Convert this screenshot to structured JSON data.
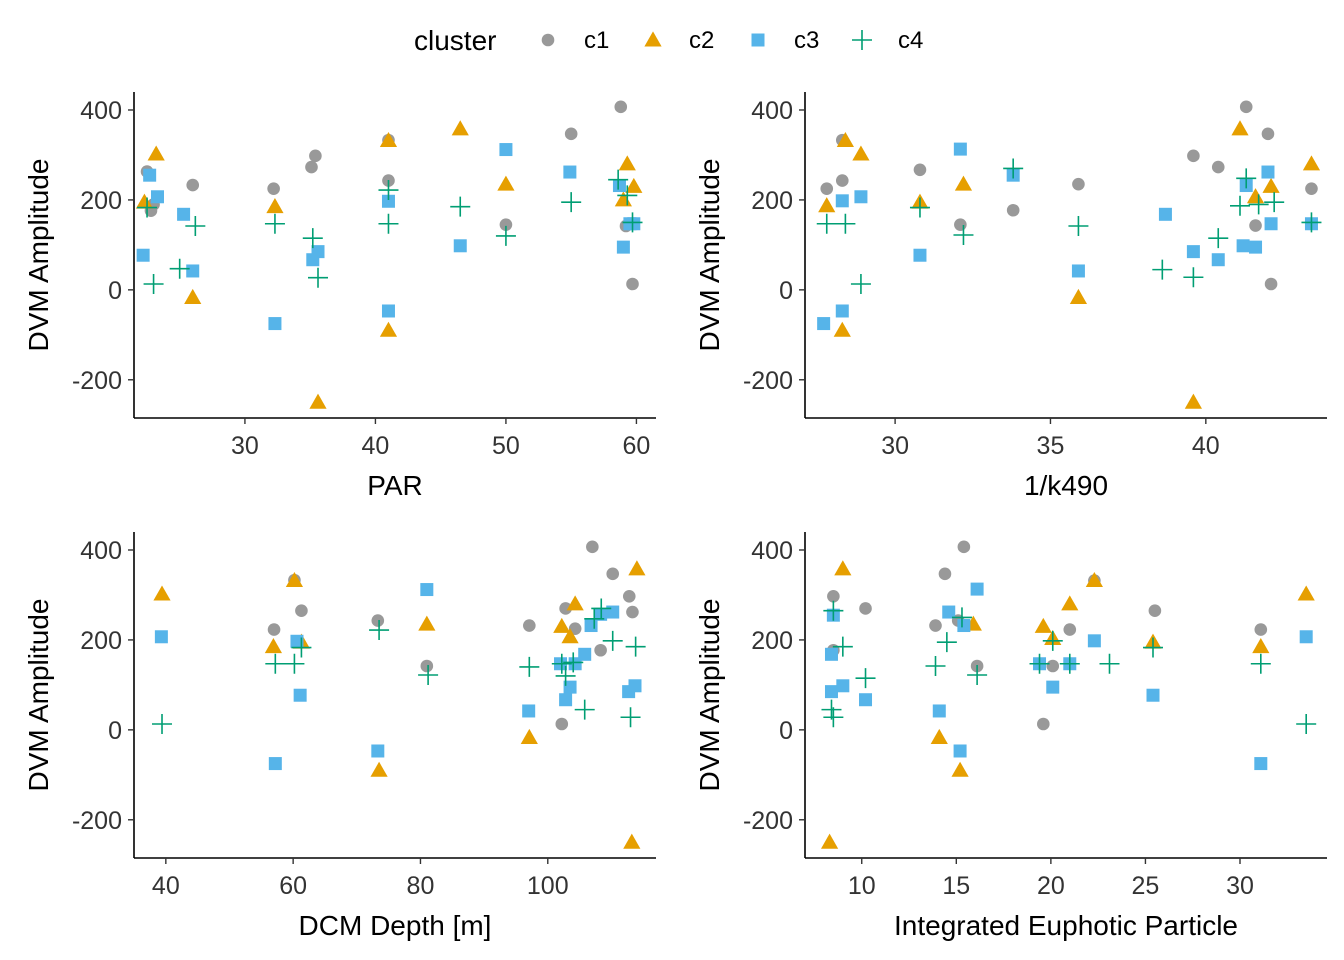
{
  "legend": {
    "title": "cluster",
    "placement": "top",
    "items": [
      {
        "label": "c1",
        "shape": "circle",
        "color": "#999999"
      },
      {
        "label": "c2",
        "shape": "triangle",
        "color": "#E69F00"
      },
      {
        "label": "c3",
        "shape": "square",
        "color": "#56B4E9"
      },
      {
        "label": "c4",
        "shape": "plus",
        "color": "#009E73"
      }
    ]
  },
  "chart_data": [
    {
      "type": "scatter",
      "xlabel": "PAR",
      "ylabel": "DVM Amplitude",
      "xlim": [
        21.5,
        61.5
      ],
      "ylim": [
        -285,
        440
      ],
      "xticks": [
        30,
        40,
        50,
        60
      ],
      "yticks": [
        -200,
        0,
        200,
        400
      ],
      "series": [
        {
          "name": "c1",
          "points": [
            [
              22.5,
              263
            ],
            [
              22.8,
              176
            ],
            [
              23,
              190
            ],
            [
              26,
              233
            ],
            [
              32.2,
              225
            ],
            [
              35.1,
              273
            ],
            [
              35.4,
              298
            ],
            [
              41,
              333
            ],
            [
              41,
              243
            ],
            [
              50,
              145
            ],
            [
              55,
              347
            ],
            [
              58.8,
              407
            ],
            [
              59.2,
              142
            ],
            [
              59.7,
              13
            ]
          ]
        },
        {
          "name": "c2",
          "points": [
            [
              22.3,
              195
            ],
            [
              23.2,
              302
            ],
            [
              26,
              -17
            ],
            [
              32.3,
              185
            ],
            [
              35.6,
              -250
            ],
            [
              41,
              332
            ],
            [
              41,
              -90
            ],
            [
              46.5,
              358
            ],
            [
              50,
              235
            ],
            [
              59,
              200
            ],
            [
              59.3,
              280
            ],
            [
              59.8,
              230
            ]
          ]
        },
        {
          "name": "c3",
          "points": [
            [
              22.2,
              77
            ],
            [
              22.7,
              255
            ],
            [
              23.3,
              207
            ],
            [
              25.3,
              168
            ],
            [
              26,
              42
            ],
            [
              32.3,
              -75
            ],
            [
              35.2,
              67
            ],
            [
              35.6,
              85
            ],
            [
              41,
              197
            ],
            [
              41,
              -47
            ],
            [
              46.5,
              98
            ],
            [
              50,
              312
            ],
            [
              54.9,
              262
            ],
            [
              58.7,
              232
            ],
            [
              59,
              95
            ],
            [
              59.5,
              147
            ],
            [
              59.8,
              147
            ]
          ]
        },
        {
          "name": "c4",
          "points": [
            [
              22.5,
              183
            ],
            [
              23,
              13
            ],
            [
              25,
              47
            ],
            [
              26.2,
              142
            ],
            [
              32.3,
              147
            ],
            [
              35.2,
              115
            ],
            [
              35.6,
              27
            ],
            [
              41,
              222
            ],
            [
              41,
              147
            ],
            [
              46.5,
              185
            ],
            [
              50,
              120
            ],
            [
              55,
              195
            ],
            [
              58.6,
              245
            ],
            [
              59.3,
              210
            ],
            [
              59.7,
              150
            ]
          ]
        }
      ]
    },
    {
      "type": "scatter",
      "xlabel": "1/k490",
      "ylabel": "DVM Amplitude",
      "xlim": [
        27.1,
        43.9
      ],
      "ylim": [
        -285,
        440
      ],
      "xticks": [
        30,
        35,
        40
      ],
      "yticks": [
        -200,
        0,
        200,
        400
      ],
      "series": [
        {
          "name": "c1",
          "points": [
            [
              27.8,
              225
            ],
            [
              28.3,
              333
            ],
            [
              28.3,
              243
            ],
            [
              30.8,
              267
            ],
            [
              32.1,
              145
            ],
            [
              33.8,
              177
            ],
            [
              35.9,
              235
            ],
            [
              39.6,
              298
            ],
            [
              40.4,
              273
            ],
            [
              41.3,
              407
            ],
            [
              41.6,
              143
            ],
            [
              42,
              347
            ],
            [
              42.1,
              13
            ],
            [
              43.4,
              225
            ]
          ]
        },
        {
          "name": "c2",
          "points": [
            [
              27.8,
              187
            ],
            [
              28.3,
              -90
            ],
            [
              28.4,
              332
            ],
            [
              28.9,
              302
            ],
            [
              30.8,
              195
            ],
            [
              32.2,
              235
            ],
            [
              35.9,
              -17
            ],
            [
              39.6,
              -250
            ],
            [
              41.1,
              358
            ],
            [
              41.6,
              207
            ],
            [
              42.1,
              230
            ],
            [
              43.4,
              280
            ]
          ]
        },
        {
          "name": "c3",
          "points": [
            [
              27.7,
              -75
            ],
            [
              28.3,
              198
            ],
            [
              28.3,
              -47
            ],
            [
              28.9,
              207
            ],
            [
              30.8,
              77
            ],
            [
              32.1,
              313
            ],
            [
              33.8,
              255
            ],
            [
              35.9,
              42
            ],
            [
              38.7,
              168
            ],
            [
              39.6,
              85
            ],
            [
              40.4,
              67
            ],
            [
              41.2,
              98
            ],
            [
              41.3,
              232
            ],
            [
              41.6,
              95
            ],
            [
              42,
              262
            ],
            [
              42.1,
              147
            ],
            [
              43.4,
              147
            ]
          ]
        },
        {
          "name": "c4",
          "points": [
            [
              27.8,
              147
            ],
            [
              28.4,
              147
            ],
            [
              28.9,
              13
            ],
            [
              30.8,
              183
            ],
            [
              32.2,
              122
            ],
            [
              33.8,
              270
            ],
            [
              35.9,
              142
            ],
            [
              38.6,
              45
            ],
            [
              39.6,
              28
            ],
            [
              40.4,
              115
            ],
            [
              41.1,
              187
            ],
            [
              41.3,
              248
            ],
            [
              41.7,
              190
            ],
            [
              42.2,
              195
            ],
            [
              43.4,
              150
            ]
          ]
        }
      ]
    },
    {
      "type": "scatter",
      "xlabel": "DCM Depth [m]",
      "ylabel": "DVM Amplitude",
      "xlim": [
        35,
        117
      ],
      "ylim": [
        -285,
        440
      ],
      "xticks": [
        40,
        60,
        80,
        100
      ],
      "yticks": [
        -200,
        0,
        200,
        400
      ],
      "series": [
        {
          "name": "c1",
          "points": [
            [
              57,
              223
            ],
            [
              60.2,
              333
            ],
            [
              61.3,
              265
            ],
            [
              73.3,
              243
            ],
            [
              81,
              142
            ],
            [
              97.1,
              232
            ],
            [
              102.2,
              13
            ],
            [
              102.8,
              270
            ],
            [
              104.3,
              225
            ],
            [
              107,
              407
            ],
            [
              108.3,
              177
            ],
            [
              110.2,
              347
            ],
            [
              112.8,
              297
            ],
            [
              113.3,
              262
            ]
          ]
        },
        {
          "name": "c2",
          "points": [
            [
              39.4,
              302
            ],
            [
              56.9,
              185
            ],
            [
              60.2,
              332
            ],
            [
              61.3,
              195
            ],
            [
              73.5,
              -90
            ],
            [
              81,
              235
            ],
            [
              97.1,
              -17
            ],
            [
              102.2,
              230
            ],
            [
              103.5,
              207
            ],
            [
              104.3,
              280
            ],
            [
              113.2,
              -250
            ],
            [
              114,
              358
            ]
          ]
        },
        {
          "name": "c3",
          "points": [
            [
              39.3,
              207
            ],
            [
              57.2,
              -75
            ],
            [
              60.6,
              197
            ],
            [
              61.1,
              77
            ],
            [
              73.3,
              -47
            ],
            [
              81,
              312
            ],
            [
              97,
              42
            ],
            [
              102,
              147
            ],
            [
              102.8,
              67
            ],
            [
              103.5,
              95
            ],
            [
              104.3,
              147
            ],
            [
              105.8,
              168
            ],
            [
              106.8,
              232
            ],
            [
              108.3,
              257
            ],
            [
              110.2,
              262
            ],
            [
              112.7,
              85
            ],
            [
              113.7,
              98
            ]
          ]
        },
        {
          "name": "c4",
          "points": [
            [
              39.4,
              13
            ],
            [
              57.2,
              147
            ],
            [
              60.2,
              147
            ],
            [
              61.3,
              183
            ],
            [
              73.5,
              222
            ],
            [
              81.2,
              122
            ],
            [
              97.1,
              140
            ],
            [
              102.2,
              147
            ],
            [
              102.8,
              120
            ],
            [
              104,
              150
            ],
            [
              105.8,
              45
            ],
            [
              107.3,
              247
            ],
            [
              108.4,
              270
            ],
            [
              110.2,
              198
            ],
            [
              113,
              28
            ],
            [
              113.8,
              185
            ]
          ]
        }
      ]
    },
    {
      "type": "scatter",
      "xlabel": "Integrated Euphotic Particle",
      "ylabel": "DVM Amplitude",
      "xlim": [
        7,
        34.6
      ],
      "ylim": [
        -285,
        440
      ],
      "xticks": [
        10,
        15,
        20,
        25,
        30
      ],
      "yticks": [
        -200,
        0,
        200,
        400
      ],
      "series": [
        {
          "name": "c1",
          "points": [
            [
              8.5,
              297
            ],
            [
              8.5,
              177
            ],
            [
              10.2,
              270
            ],
            [
              13.9,
              232
            ],
            [
              14.4,
              347
            ],
            [
              15.1,
              243
            ],
            [
              15.4,
              407
            ],
            [
              16.1,
              142
            ],
            [
              19.6,
              13
            ],
            [
              20.1,
              142
            ],
            [
              21,
              223
            ],
            [
              22.3,
              332
            ],
            [
              25.5,
              265
            ],
            [
              31.1,
              223
            ]
          ]
        },
        {
          "name": "c2",
          "points": [
            [
              8.3,
              -250
            ],
            [
              9,
              358
            ],
            [
              14.1,
              -17
            ],
            [
              15.2,
              -90
            ],
            [
              15.9,
              235
            ],
            [
              19.6,
              230
            ],
            [
              20.1,
              203
            ],
            [
              21,
              280
            ],
            [
              22.3,
              332
            ],
            [
              25.4,
              195
            ],
            [
              31.1,
              185
            ],
            [
              33.5,
              302
            ]
          ]
        },
        {
          "name": "c3",
          "points": [
            [
              8.4,
              168
            ],
            [
              8.5,
              255
            ],
            [
              8.4,
              85
            ],
            [
              9,
              98
            ],
            [
              10.2,
              67
            ],
            [
              14.1,
              42
            ],
            [
              14.6,
              262
            ],
            [
              15.2,
              -47
            ],
            [
              15.4,
              232
            ],
            [
              16.1,
              313
            ],
            [
              19.4,
              147
            ],
            [
              20.1,
              95
            ],
            [
              21,
              147
            ],
            [
              22.3,
              198
            ],
            [
              25.4,
              77
            ],
            [
              31.1,
              -75
            ],
            [
              33.5,
              207
            ]
          ]
        },
        {
          "name": "c4",
          "points": [
            [
              8.4,
              45
            ],
            [
              8.5,
              28
            ],
            [
              8.5,
              265
            ],
            [
              9,
              185
            ],
            [
              10.2,
              115
            ],
            [
              13.9,
              142
            ],
            [
              14.5,
              195
            ],
            [
              15.3,
              250
            ],
            [
              16.1,
              122
            ],
            [
              19.4,
              147
            ],
            [
              20.1,
              198
            ],
            [
              21,
              147
            ],
            [
              23.1,
              147
            ],
            [
              25.4,
              183
            ],
            [
              31.1,
              147
            ],
            [
              33.5,
              13
            ]
          ]
        }
      ]
    }
  ]
}
